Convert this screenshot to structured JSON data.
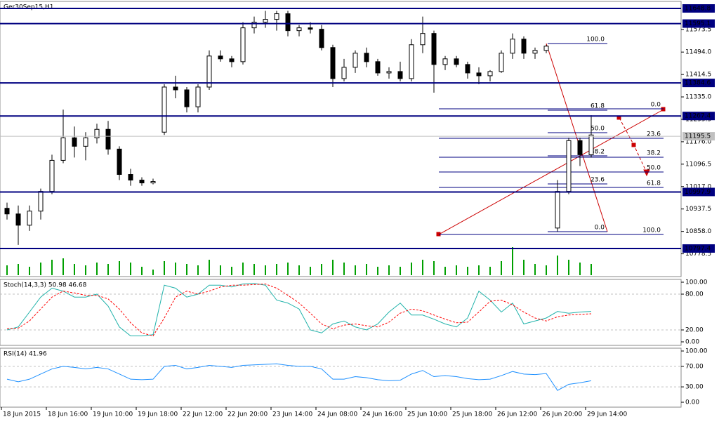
{
  "chart_data": {
    "type": "candlestick",
    "title": "Ger30Sep15,H1",
    "categories": [
      "18 Jun 2015",
      null,
      null,
      null,
      "18 Jun 16:00",
      null,
      null,
      null,
      "19 Jun 10:00",
      null,
      null,
      null,
      "19 Jun 18:00",
      null,
      null,
      null,
      "22 Jun 12:00",
      null,
      null,
      null,
      "22 Jun 20:00",
      null,
      null,
      null,
      "23 Jun 14:00",
      null,
      null,
      null,
      "24 Jun 08:00",
      null,
      null,
      null,
      "24 Jun 16:00",
      null,
      null,
      null,
      "25 Jun 10:00",
      null,
      null,
      null,
      "25 Jun 18:00",
      null,
      null,
      null,
      "26 Jun 12:00",
      null,
      null,
      null,
      "26 Jun 20:00",
      null,
      null,
      null,
      "29 Jun 14:00"
    ],
    "open": [
      10940,
      10920,
      10880,
      10930,
      11000,
      11110,
      11190,
      11160,
      11190,
      11220,
      11150,
      11060,
      11040,
      11030,
      11210,
      11370,
      11360,
      11300,
      11370,
      11480,
      11470,
      11460,
      11580,
      11600,
      11610,
      11630,
      11570,
      11580,
      11575,
      11510,
      11400,
      11440,
      11490,
      11460,
      11420,
      11425,
      11400,
      11520,
      11560,
      11450,
      11470,
      11450,
      11420,
      11410,
      11425,
      11490,
      11540,
      11490,
      11500,
      10870,
      11000,
      11180,
      11130
    ],
    "high": [
      10960,
      10950,
      10950,
      11010,
      11130,
      11290,
      11230,
      11210,
      11240,
      11250,
      11160,
      11080,
      11050,
      11045,
      11380,
      11410,
      11370,
      11380,
      11500,
      11500,
      11480,
      11600,
      11620,
      11640,
      11640,
      11640,
      11590,
      11600,
      11590,
      11520,
      11470,
      11500,
      11510,
      11470,
      11440,
      11460,
      11540,
      11620,
      11570,
      11480,
      11480,
      11460,
      11440,
      11430,
      11500,
      11560,
      11550,
      11510,
      11520,
      11040,
      11190,
      11190,
      11270
    ],
    "low": [
      10900,
      10810,
      10860,
      10900,
      10990,
      11100,
      11120,
      11110,
      11170,
      11130,
      11040,
      11020,
      11020,
      11025,
      11200,
      11330,
      11280,
      11280,
      11360,
      11460,
      11440,
      11450,
      11560,
      11580,
      11570,
      11550,
      11550,
      11560,
      11500,
      11370,
      11390,
      11420,
      11440,
      11410,
      11400,
      11390,
      11390,
      11490,
      11350,
      11430,
      11440,
      11400,
      11380,
      11390,
      11420,
      11470,
      11470,
      11470,
      11490,
      10858,
      10990,
      11090,
      11120
    ],
    "close": [
      10920,
      10880,
      10930,
      11000,
      11110,
      11190,
      11160,
      11190,
      11220,
      11150,
      11060,
      11040,
      11030,
      11035,
      11370,
      11360,
      11300,
      11370,
      11480,
      11470,
      11460,
      11580,
      11600,
      11610,
      11630,
      11570,
      11580,
      11575,
      11510,
      11400,
      11440,
      11490,
      11460,
      11420,
      11425,
      11400,
      11520,
      11560,
      11450,
      11470,
      11450,
      11420,
      11410,
      11425,
      11490,
      11540,
      11490,
      11500,
      11515,
      11000,
      11180,
      11130,
      11200
    ],
    "up_color": "#ffffff",
    "down_color": "#000000",
    "ylim": [
      10697.8,
      11673.7
    ],
    "yticks": [
      11573.5,
      {
        "value": 11494,
        "label": "11494.0"
      },
      11414.5,
      {
        "value": 11335,
        "label": "11335.0"
      },
      11255.5,
      {
        "value": 11176,
        "label": "11176.0"
      },
      11096.5,
      {
        "value": 11017,
        "label": "11017.0"
      },
      10937.5,
      {
        "value": 10858,
        "label": "10858.0"
      },
      10778.5
    ],
    "levels": [
      11648.8,
      11595.1,
      11384.6,
      11267.4,
      10997.9,
      10797.4
    ],
    "level_color": "#000080",
    "current_price": 11195.5,
    "fibs": [
      {
        "levels": [
          {
            "value": 11292.8,
            "label": "0.0"
          },
          {
            "value": 11188.2,
            "label": "23.6"
          },
          {
            "value": 11121.0,
            "label": "38.2"
          },
          {
            "value": 11068.7,
            "label": "50.0"
          },
          {
            "value": 11014.0,
            "label": "61.8"
          },
          {
            "value": 10847.2,
            "label": "100.0"
          }
        ]
      },
      {
        "levels": [
          {
            "value": 11524.3,
            "label": "100.0"
          },
          {
            "value": 11287.8,
            "label": "61.8"
          },
          {
            "value": 11208.2,
            "label": "50.0"
          },
          {
            "value": 11126.0,
            "label": "38.2"
          },
          {
            "value": 11026.4,
            "label": "23.6"
          },
          {
            "value": 10857.1,
            "label": "0.0"
          }
        ]
      }
    ],
    "volume": {
      "color": "#00a000",
      "values": [
        35,
        40,
        30,
        45,
        55,
        60,
        40,
        35,
        45,
        40,
        50,
        45,
        30,
        20,
        50,
        45,
        40,
        35,
        55,
        35,
        30,
        45,
        40,
        35,
        40,
        45,
        35,
        30,
        40,
        55,
        45,
        35,
        40,
        30,
        35,
        30,
        45,
        55,
        50,
        30,
        35,
        30,
        35,
        30,
        50,
        100,
        55,
        40,
        35,
        70,
        55,
        45,
        40
      ]
    },
    "indicators": [
      {
        "title": "Stoch(14,3,3) 50.98 46.68",
        "ylim": [
          -5.9,
          104.7
        ],
        "yticks": [
          {
            "value": 100,
            "label": "100.00"
          },
          {
            "value": 80,
            "label": "80.00"
          },
          {
            "value": 20,
            "label": "20.00"
          },
          {
            "value": 0,
            "label": "0.00"
          }
        ],
        "series": [
          {
            "color": "#20b2aa",
            "values": [
              20,
              25,
              50,
              75,
              90,
              85,
              75,
              75,
              80,
              60,
              25,
              10,
              10,
              12,
              95,
              90,
              75,
              80,
              95,
              95,
              92,
              97,
              98,
              95,
              70,
              65,
              55,
              20,
              15,
              30,
              35,
              25,
              20,
              30,
              50,
              65,
              45,
              45,
              38,
              30,
              25,
              40,
              85,
              70,
              50,
              65,
              30,
              35,
              40,
              51,
              48,
              50,
              51
            ]
          },
          {
            "color": "#ff0000",
            "dashed": true,
            "values": [
              22,
              23,
              35,
              55,
              75,
              85,
              82,
              78,
              78,
              72,
              55,
              32,
              15,
              10,
              40,
              75,
              85,
              80,
              85,
              92,
              95,
              95,
              96,
              97,
              90,
              78,
              65,
              48,
              30,
              22,
              28,
              30,
              27,
              25,
              33,
              48,
              55,
              52,
              45,
              38,
              32,
              33,
              50,
              68,
              70,
              62,
              50,
              40,
              35,
              42,
              45,
              46,
              47
            ]
          }
        ]
      },
      {
        "title": "RSI(14) 41.96",
        "ylim": [
          -9.6,
          105.5
        ],
        "yticks": [
          {
            "value": 100,
            "label": "100.00"
          },
          {
            "value": 70,
            "label": "70.00"
          },
          {
            "value": 30,
            "label": "30.00"
          },
          {
            "value": 0,
            "label": "0.00"
          }
        ],
        "series": [
          {
            "color": "#1e90ff",
            "values": [
              45,
              40,
              45,
              55,
              65,
              70,
              68,
              65,
              68,
              65,
              55,
              45,
              44,
              45,
              70,
              72,
              65,
              68,
              72,
              70,
              68,
              72,
              73,
              74,
              75,
              72,
              70,
              70,
              65,
              45,
              45,
              50,
              48,
              44,
              42,
              43,
              55,
              62,
              50,
              52,
              50,
              46,
              44,
              45,
              52,
              60,
              55,
              54,
              56,
              23,
              35,
              38,
              42
            ]
          }
        ]
      }
    ]
  }
}
